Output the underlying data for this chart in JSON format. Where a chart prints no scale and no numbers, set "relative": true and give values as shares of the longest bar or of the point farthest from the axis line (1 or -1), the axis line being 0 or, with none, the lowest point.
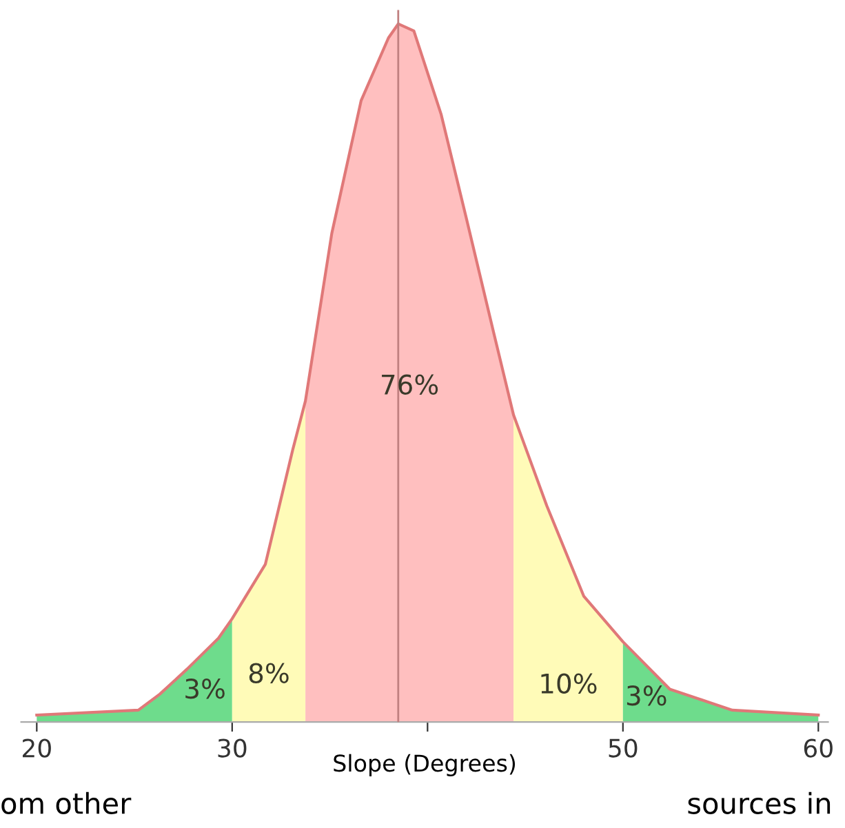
{
  "chart_data": {
    "type": "area",
    "relative": true,
    "xlabel": "Slope (Degrees)",
    "xlim": [
      19.2,
      60.5
    ],
    "xticks": [
      20,
      30,
      {
        "value": 40,
        "label": null
      },
      50,
      60
    ],
    "series": [
      {
        "color": "#6edc8c",
        "x": [
          20,
          25.2,
          26.3,
          27.7,
          29.3,
          30
        ],
        "values": [
          0.01,
          0.017,
          0.04,
          0.076,
          0.12,
          0.148
        ]
      },
      {
        "color": "#fffbb8",
        "x": [
          30,
          31.7,
          33.1,
          33.75
        ],
        "values": [
          0.148,
          0.226,
          0.39,
          0.46
        ]
      },
      {
        "color": "#ffbfbf",
        "x": [
          33.75,
          35.1,
          36.6,
          38.0,
          38.5,
          39.3,
          40.7,
          42.0,
          43.4,
          44.4
        ],
        "values": [
          0.46,
          0.7,
          0.89,
          0.98,
          1.0,
          0.99,
          0.87,
          0.72,
          0.556,
          0.44
        ]
      },
      {
        "color": "#fffbb8",
        "x": [
          44.4,
          46.1,
          48.0,
          50
        ],
        "values": [
          0.44,
          0.31,
          0.18,
          0.115
        ]
      },
      {
        "color": "#6edc8c",
        "x": [
          50,
          52.4,
          55.6,
          60
        ],
        "values": [
          0.115,
          0.047,
          0.017,
          0.01
        ]
      },
      {
        "type": "line",
        "color": "#e07878",
        "x": [
          20,
          25.2,
          26.3,
          27.7,
          29.3,
          30,
          31.7,
          33.1,
          33.75,
          35.1,
          36.6,
          38.0,
          38.5,
          39.3,
          40.7,
          42.0,
          43.4,
          44.4,
          46.1,
          48.0,
          50,
          52.4,
          55.6,
          60
        ],
        "values": [
          0.01,
          0.017,
          0.04,
          0.076,
          0.12,
          0.148,
          0.226,
          0.39,
          0.46,
          0.7,
          0.89,
          0.98,
          1.0,
          0.99,
          0.87,
          0.72,
          0.556,
          0.44,
          0.31,
          0.18,
          0.115,
          0.047,
          0.017,
          0.01
        ]
      }
    ],
    "ref_lines": [
      {
        "axis": "x",
        "value": 38.5,
        "color": "#c08080"
      }
    ],
    "annotations": [
      "3%",
      "8%",
      "76%",
      "10%",
      "3%",
      "om other",
      "sources in"
    ]
  }
}
